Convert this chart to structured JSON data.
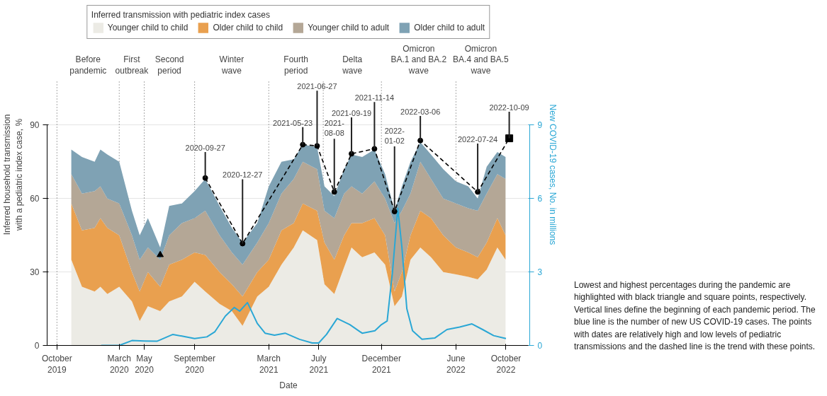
{
  "chart_data": {
    "type": "area",
    "stacked": true,
    "xlabel": "Date",
    "ylabel": "Inferred household transmission\nwith a pediatric index case, %",
    "y2label": "New COVID-19 cases, No. in millions",
    "legend_title": "Inferred transmission with pediatric index cases",
    "legend": "top",
    "grid": "y",
    "xlim": [
      "2019-09-07",
      "2022-11-28"
    ],
    "xticks": [
      {
        "value": "2019-10-01",
        "label": "October\n2019"
      },
      {
        "value": "2020-03-01",
        "label": "March\n2020"
      },
      {
        "value": "2020-05-01",
        "label": "May\n2020"
      },
      {
        "value": "2020-09-01",
        "label": "September\n2020"
      },
      {
        "value": "2021-03-01",
        "label": "March\n2021"
      },
      {
        "value": "2021-07-01",
        "label": "July\n2021"
      },
      {
        "value": "2021-12-01",
        "label": "December\n2021"
      },
      {
        "value": "2022-06-01",
        "label": "June\n2022"
      },
      {
        "value": "2022-10-01",
        "label": "October\n2022"
      }
    ],
    "ylim": [
      0,
      90
    ],
    "yticks": [
      0,
      30,
      60,
      90
    ],
    "y2lim": [
      0,
      9
    ],
    "y2ticks": [
      0,
      3,
      6,
      9
    ],
    "x": [
      "2019-11-05",
      "2019-12-01",
      "2020-01-01",
      "2020-01-15",
      "2020-02-01",
      "2020-03-01",
      "2020-04-01",
      "2020-04-20",
      "2020-05-10",
      "2020-06-09",
      "2020-07-01",
      "2020-08-01",
      "2020-09-01",
      "2020-09-27",
      "2020-11-01",
      "2020-12-01",
      "2020-12-27",
      "2021-02-01",
      "2021-03-01",
      "2021-04-01",
      "2021-05-01",
      "2021-05-23",
      "2021-06-27",
      "2021-07-15",
      "2021-08-08",
      "2021-09-01",
      "2021-09-19",
      "2021-10-15",
      "2021-11-14",
      "2021-12-10",
      "2022-01-02",
      "2022-01-20",
      "2022-02-10",
      "2022-03-06",
      "2022-04-01",
      "2022-05-01",
      "2022-06-01",
      "2022-07-01",
      "2022-07-24",
      "2022-08-15",
      "2022-09-10",
      "2022-09-30"
    ],
    "series": [
      {
        "name": "Younger child to child",
        "color": "#ecebe5",
        "values": [
          35,
          24,
          22,
          24,
          21,
          24,
          18,
          10,
          16,
          14,
          18,
          20,
          26,
          22,
          17,
          14,
          8,
          20,
          24,
          33,
          40,
          47,
          43,
          25,
          21,
          32,
          40,
          36,
          38,
          33,
          16,
          20,
          35,
          40,
          36,
          30,
          29,
          28,
          27,
          31,
          40,
          35
        ]
      },
      {
        "name": "Older child to child",
        "color": "#e9a04f",
        "values": [
          23,
          23,
          26,
          28,
          27,
          21,
          12,
          12,
          14,
          10,
          15,
          15,
          12,
          15,
          13,
          11,
          12,
          10,
          11,
          14,
          10,
          11,
          12,
          17,
          14,
          13,
          10,
          14,
          14,
          12,
          6,
          10,
          10,
          15,
          16,
          15,
          11,
          10,
          9,
          11,
          12,
          10
        ]
      },
      {
        "name": "Younger child to adult",
        "color": "#b4a796",
        "values": [
          12,
          15,
          15,
          13,
          12,
          13,
          15,
          13,
          10,
          11,
          12,
          15,
          14,
          18,
          15,
          13,
          13,
          12,
          15,
          15,
          18,
          17,
          17,
          13,
          17,
          17,
          15,
          12,
          15,
          15,
          28,
          25,
          17,
          20,
          16,
          15,
          18,
          18,
          19,
          20,
          18,
          23
        ]
      },
      {
        "name": "Older child to adult",
        "color": "#7fa2b4",
        "values": [
          10,
          15,
          12,
          15,
          18,
          17,
          10,
          10,
          12,
          5,
          12,
          8,
          11,
          13,
          12,
          10,
          9,
          8,
          15,
          13,
          8,
          7,
          9,
          10,
          9,
          10,
          13,
          15,
          13,
          10,
          5,
          10,
          13,
          8,
          10,
          12,
          9,
          9,
          5,
          11,
          9,
          9
        ]
      },
      {
        "type": "line",
        "axis": "y2",
        "color": "#2aa7d5",
        "x": [
          "2020-01-17",
          "2020-03-01",
          "2020-04-01",
          "2020-05-01",
          "2020-06-01",
          "2020-07-10",
          "2020-08-01",
          "2020-09-01",
          "2020-10-01",
          "2020-10-20",
          "2020-11-15",
          "2020-12-07",
          "2020-12-20",
          "2021-01-08",
          "2021-02-01",
          "2021-02-20",
          "2021-03-15",
          "2021-04-10",
          "2021-05-15",
          "2021-06-15",
          "2021-07-01",
          "2021-07-20",
          "2021-08-15",
          "2021-09-15",
          "2021-10-15",
          "2021-11-15",
          "2021-12-01",
          "2021-12-15",
          "2021-12-28",
          "2022-01-10",
          "2022-01-20",
          "2022-02-01",
          "2022-02-15",
          "2022-03-10",
          "2022-04-10",
          "2022-05-10",
          "2022-06-10",
          "2022-07-10",
          "2022-08-05",
          "2022-09-01",
          "2022-10-01"
        ],
        "values": [
          0,
          0,
          0.2,
          0.18,
          0.17,
          0.45,
          0.38,
          0.28,
          0.35,
          0.55,
          1.2,
          1.55,
          1.4,
          1.75,
          0.9,
          0.5,
          0.42,
          0.5,
          0.25,
          0.1,
          0.1,
          0.45,
          1.1,
          0.85,
          0.5,
          0.6,
          0.85,
          1.0,
          3.0,
          5.6,
          4.0,
          1.5,
          0.6,
          0.25,
          0.3,
          0.65,
          0.75,
          0.88,
          0.65,
          0.4,
          0.28
        ]
      },
      {
        "type": "line",
        "line_style": "dashed",
        "marker": "none",
        "color": "#000000",
        "x": [
          "2020-09-27",
          "2020-12-27",
          "2021-05-23",
          "2021-06-27",
          "2021-08-08",
          "2021-09-19",
          "2021-11-14",
          "2022-01-02",
          "2022-03-06",
          "2022-07-24",
          "2022-10-09"
        ],
        "values": [
          68.4,
          41.6,
          82.0,
          81.5,
          62.7,
          78.3,
          80.3,
          54.7,
          83.7,
          62.7,
          84.6
        ]
      },
      {
        "type": "scatter",
        "marker": "circle",
        "color": "#000000",
        "x": [
          "2020-09-27",
          "2020-12-27",
          "2021-05-23",
          "2021-06-27",
          "2021-08-08",
          "2021-09-19",
          "2021-11-14",
          "2022-01-02",
          "2022-03-06",
          "2022-07-24"
        ],
        "values": [
          68.4,
          41.6,
          82.0,
          81.5,
          62.7,
          78.3,
          80.3,
          54.7,
          83.7,
          62.7
        ]
      },
      {
        "type": "scatter",
        "marker": "square",
        "color": "#000000",
        "x": [
          "2022-10-09"
        ],
        "values": [
          84.6
        ]
      },
      {
        "type": "scatter",
        "marker": "triangle",
        "color": "#000000",
        "x": [
          "2020-06-09"
        ],
        "values": [
          37.0
        ]
      }
    ],
    "ref_lines": [
      {
        "axis": "x",
        "value": "2019-10-01",
        "label": "Before\npandemic",
        "color": "#555555",
        "line_style": "dotted"
      },
      {
        "axis": "x",
        "value": "2020-03-01",
        "label": "First\noutbreak",
        "color": "#555555",
        "line_style": "dotted"
      },
      {
        "axis": "x",
        "value": "2020-05-01",
        "label": "Second\nperiod",
        "color": "#555555",
        "line_style": "dotted"
      },
      {
        "axis": "x",
        "value": "2020-09-01",
        "label": "Winter\nwave",
        "color": "#555555",
        "line_style": "dotted"
      },
      {
        "axis": "x",
        "value": "2021-03-01",
        "label": "Fourth\nperiod",
        "color": "#555555",
        "line_style": "dotted"
      },
      {
        "axis": "x",
        "value": "2021-07-12",
        "label": "Delta\nwave",
        "color": "#555555",
        "line_style": "dotted"
      },
      {
        "axis": "x",
        "value": "2021-12-01",
        "label": "Omicron\nBA.1 and BA.2\nwave",
        "color": "#555555",
        "line_style": "dotted"
      },
      {
        "axis": "x",
        "value": "2022-06-01",
        "label": "Omicron\nBA.4 and BA.5\nwave",
        "color": "#555555",
        "line_style": "dotted"
      }
    ],
    "annotations": [
      {
        "text": "2020-09-27",
        "x": "2020-09-27",
        "y": 68.4
      },
      {
        "text": "2020-12-27",
        "x": "2020-12-27",
        "y": 41.6
      },
      {
        "text": "2021-05-23",
        "x": "2021-05-23",
        "y": 82.0
      },
      {
        "text": "2021-06-27",
        "x": "2021-06-27",
        "y": 81.5
      },
      {
        "text": "2021-08-08",
        "x": "2021-08-08",
        "y": 62.7
      },
      {
        "text": "2021-09-19",
        "x": "2021-09-19",
        "y": 78.3
      },
      {
        "text": "2021-11-14",
        "x": "2021-11-14",
        "y": 80.3
      },
      {
        "text": "2022-01-02",
        "x": "2022-01-02",
        "y": 54.7
      },
      {
        "text": "2022-03-06",
        "x": "2022-03-06",
        "y": 83.7
      },
      {
        "text": "2022-07-24",
        "x": "2022-07-24",
        "y": 62.7
      },
      {
        "text": "2022-10-09",
        "x": "2022-10-09",
        "y": 84.6
      },
      "Lowest and highest percentages during the pandemic are highlighted with black triangle and square points, respectively. Vertical lines define the beginning of each pandemic period. The blue line is the number of new US COVID-19 cases. The points with dates are relatively high and low levels of pediatric transmissions and the dashed line is the trend with these points."
    ]
  }
}
